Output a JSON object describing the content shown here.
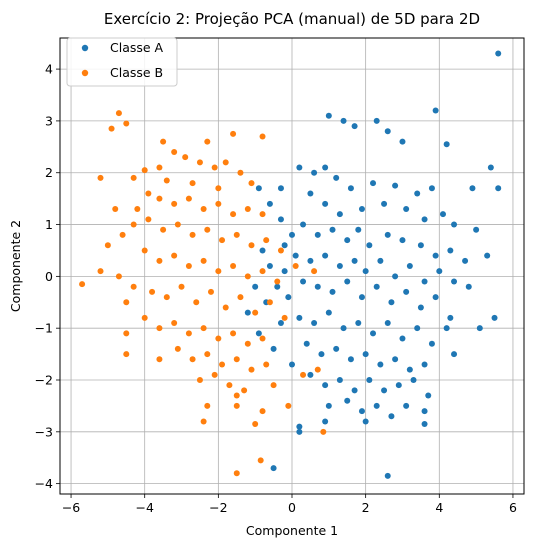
{
  "chart_data": {
    "type": "scatter",
    "title": "Exercício 2: Projeção PCA (manual) de 5D para 2D",
    "xlabel": "Componente 1",
    "ylabel": "Componente 2",
    "xlim": [
      -6.3,
      6.3
    ],
    "ylim": [
      -4.2,
      4.6
    ],
    "xticks": [
      -6,
      -4,
      -2,
      0,
      2,
      4,
      6
    ],
    "yticks": [
      -4,
      -3,
      -2,
      -1,
      0,
      1,
      2,
      3,
      4
    ],
    "xtick_labels": [
      "−6",
      "−4",
      "−2",
      "0",
      "2",
      "4",
      "6"
    ],
    "ytick_labels": [
      "−4",
      "−3",
      "−2",
      "−1",
      "0",
      "1",
      "2",
      "3",
      "4"
    ],
    "grid": true,
    "legend_position": "top-left",
    "series": [
      {
        "name": "Classe A",
        "color": "#1f77b4",
        "points": [
          [
            5.6,
            4.3
          ],
          [
            3.9,
            3.2
          ],
          [
            2.3,
            3.0
          ],
          [
            1.0,
            3.1
          ],
          [
            1.4,
            3.0
          ],
          [
            1.7,
            2.9
          ],
          [
            2.6,
            2.8
          ],
          [
            4.2,
            2.55
          ],
          [
            3.0,
            2.6
          ],
          [
            0.9,
            2.1
          ],
          [
            0.2,
            2.1
          ],
          [
            0.6,
            2.0
          ],
          [
            1.2,
            1.9
          ],
          [
            1.6,
            1.7
          ],
          [
            2.2,
            1.8
          ],
          [
            2.8,
            1.75
          ],
          [
            3.4,
            1.6
          ],
          [
            3.8,
            1.7
          ],
          [
            4.9,
            1.7
          ],
          [
            5.4,
            2.1
          ],
          [
            5.6,
            1.7
          ],
          [
            -0.3,
            1.7
          ],
          [
            -0.9,
            1.7
          ],
          [
            0.5,
            1.6
          ],
          [
            0.9,
            1.4
          ],
          [
            1.3,
            1.2
          ],
          [
            1.9,
            1.3
          ],
          [
            2.5,
            1.4
          ],
          [
            3.1,
            1.3
          ],
          [
            3.6,
            1.1
          ],
          [
            4.1,
            1.2
          ],
          [
            4.4,
            1.0
          ],
          [
            -0.6,
            1.4
          ],
          [
            0.3,
            1.0
          ],
          [
            0.7,
            0.8
          ],
          [
            1.1,
            0.9
          ],
          [
            1.5,
            0.7
          ],
          [
            1.8,
            0.9
          ],
          [
            2.1,
            0.6
          ],
          [
            2.6,
            0.8
          ],
          [
            3.0,
            0.7
          ],
          [
            3.5,
            0.6
          ],
          [
            3.9,
            0.4
          ],
          [
            4.3,
            0.5
          ],
          [
            4.7,
            0.3
          ],
          [
            5.3,
            0.4
          ],
          [
            5.0,
            0.9
          ],
          [
            -0.2,
            0.6
          ],
          [
            0.1,
            0.4
          ],
          [
            0.5,
            0.3
          ],
          [
            0.9,
            0.4
          ],
          [
            1.3,
            0.2
          ],
          [
            1.7,
            0.3
          ],
          [
            2.0,
            0.1
          ],
          [
            2.4,
            0.3
          ],
          [
            2.8,
            0.0
          ],
          [
            3.2,
            0.2
          ],
          [
            3.6,
            -0.1
          ],
          [
            4.0,
            0.1
          ],
          [
            4.4,
            -0.1
          ],
          [
            4.8,
            -0.2
          ],
          [
            0.3,
            -0.1
          ],
          [
            0.7,
            -0.2
          ],
          [
            1.1,
            -0.3
          ],
          [
            1.5,
            -0.1
          ],
          [
            1.9,
            -0.4
          ],
          [
            2.3,
            -0.2
          ],
          [
            2.7,
            -0.5
          ],
          [
            3.1,
            -0.3
          ],
          [
            3.5,
            -0.6
          ],
          [
            3.9,
            -0.4
          ],
          [
            4.3,
            -0.8
          ],
          [
            5.1,
            -1.0
          ],
          [
            5.5,
            -0.8
          ],
          [
            -0.1,
            -0.4
          ],
          [
            0.2,
            -0.8
          ],
          [
            0.6,
            -0.9
          ],
          [
            1.0,
            -0.7
          ],
          [
            1.4,
            -1.0
          ],
          [
            1.8,
            -0.9
          ],
          [
            2.2,
            -1.1
          ],
          [
            2.6,
            -0.9
          ],
          [
            3.0,
            -1.2
          ],
          [
            3.4,
            -1.0
          ],
          [
            3.8,
            -1.3
          ],
          [
            4.2,
            -1.0
          ],
          [
            4.4,
            -1.5
          ],
          [
            0.4,
            -1.3
          ],
          [
            0.8,
            -1.5
          ],
          [
            1.2,
            -1.4
          ],
          [
            1.6,
            -1.6
          ],
          [
            2.0,
            -1.5
          ],
          [
            2.4,
            -1.7
          ],
          [
            2.8,
            -1.6
          ],
          [
            3.2,
            -1.8
          ],
          [
            3.6,
            -1.7
          ],
          [
            0.0,
            -1.7
          ],
          [
            0.5,
            -1.9
          ],
          [
            0.9,
            -2.1
          ],
          [
            1.3,
            -2.0
          ],
          [
            1.7,
            -2.2
          ],
          [
            2.1,
            -2.0
          ],
          [
            2.5,
            -2.2
          ],
          [
            2.9,
            -2.1
          ],
          [
            3.3,
            -2.0
          ],
          [
            3.7,
            -2.3
          ],
          [
            1.0,
            -2.5
          ],
          [
            1.5,
            -2.4
          ],
          [
            1.9,
            -2.6
          ],
          [
            2.3,
            -2.5
          ],
          [
            2.7,
            -2.7
          ],
          [
            3.1,
            -2.5
          ],
          [
            3.6,
            -2.6
          ],
          [
            3.6,
            -2.85
          ],
          [
            0.2,
            -2.9
          ],
          [
            0.9,
            -2.8
          ],
          [
            2.0,
            -2.8
          ],
          [
            0.2,
            -3.0
          ],
          [
            -0.5,
            -3.7
          ],
          [
            2.6,
            -3.85
          ],
          [
            -1.2,
            -0.7
          ],
          [
            -0.9,
            -1.1
          ],
          [
            -0.7,
            -0.5
          ],
          [
            -0.5,
            -1.4
          ],
          [
            -0.3,
            -0.9
          ],
          [
            -1.0,
            -0.2
          ],
          [
            -0.6,
            0.2
          ],
          [
            -0.4,
            -0.2
          ],
          [
            -0.2,
            0.1
          ],
          [
            -0.8,
            0.5
          ],
          [
            -0.3,
            1.1
          ],
          [
            0.0,
            0.8
          ]
        ]
      },
      {
        "name": "Classe B",
        "color": "#ff7f0e",
        "points": [
          [
            -4.7,
            3.15
          ],
          [
            -4.5,
            2.95
          ],
          [
            -4.9,
            2.85
          ],
          [
            -3.5,
            2.6
          ],
          [
            -2.3,
            2.6
          ],
          [
            -1.6,
            2.75
          ],
          [
            -0.8,
            2.7
          ],
          [
            -3.2,
            2.4
          ],
          [
            -2.9,
            2.3
          ],
          [
            -2.5,
            2.2
          ],
          [
            -2.1,
            2.1
          ],
          [
            -1.8,
            2.2
          ],
          [
            -1.4,
            2.0
          ],
          [
            -3.6,
            2.1
          ],
          [
            -4.0,
            2.05
          ],
          [
            -4.3,
            1.9
          ],
          [
            -5.2,
            1.9
          ],
          [
            -3.4,
            1.85
          ],
          [
            -2.7,
            1.8
          ],
          [
            -2.0,
            1.7
          ],
          [
            -1.1,
            1.8
          ],
          [
            -3.9,
            1.6
          ],
          [
            -3.6,
            1.5
          ],
          [
            -3.2,
            1.4
          ],
          [
            -2.8,
            1.5
          ],
          [
            -2.4,
            1.3
          ],
          [
            -2.0,
            1.4
          ],
          [
            -1.6,
            1.2
          ],
          [
            -1.2,
            1.3
          ],
          [
            -0.8,
            1.2
          ],
          [
            -4.2,
            1.3
          ],
          [
            -4.8,
            1.3
          ],
          [
            -4.3,
            1.0
          ],
          [
            -3.9,
            1.1
          ],
          [
            -3.5,
            0.9
          ],
          [
            -3.1,
            1.0
          ],
          [
            -2.7,
            0.8
          ],
          [
            -2.3,
            0.9
          ],
          [
            -1.9,
            0.7
          ],
          [
            -1.5,
            0.8
          ],
          [
            -1.1,
            0.6
          ],
          [
            -0.7,
            0.7
          ],
          [
            -0.3,
            0.5
          ],
          [
            -4.6,
            0.8
          ],
          [
            -5.0,
            0.6
          ],
          [
            -4.0,
            0.5
          ],
          [
            -3.6,
            0.3
          ],
          [
            -3.2,
            0.4
          ],
          [
            -2.8,
            0.2
          ],
          [
            -2.4,
            0.3
          ],
          [
            -2.0,
            0.1
          ],
          [
            -1.6,
            0.2
          ],
          [
            -1.2,
            0.0
          ],
          [
            -0.8,
            0.1
          ],
          [
            -0.4,
            -0.1
          ],
          [
            0.1,
            0.2
          ],
          [
            0.6,
            0.1
          ],
          [
            -5.2,
            0.1
          ],
          [
            -4.7,
            0.0
          ],
          [
            -5.7,
            -0.15
          ],
          [
            -4.3,
            -0.2
          ],
          [
            -3.8,
            -0.3
          ],
          [
            -3.4,
            -0.4
          ],
          [
            -3.0,
            -0.2
          ],
          [
            -2.6,
            -0.5
          ],
          [
            -2.2,
            -0.3
          ],
          [
            -1.8,
            -0.6
          ],
          [
            -1.4,
            -0.4
          ],
          [
            -1.0,
            -0.7
          ],
          [
            -0.6,
            -0.5
          ],
          [
            -0.2,
            -0.8
          ],
          [
            -4.5,
            -0.5
          ],
          [
            -4.0,
            -0.8
          ],
          [
            -3.6,
            -1.0
          ],
          [
            -3.2,
            -0.9
          ],
          [
            -2.8,
            -1.1
          ],
          [
            -2.4,
            -1.0
          ],
          [
            -2.0,
            -1.2
          ],
          [
            -1.6,
            -1.1
          ],
          [
            -1.2,
            -1.3
          ],
          [
            -0.8,
            -1.2
          ],
          [
            -4.5,
            -1.1
          ],
          [
            -4.5,
            -1.5
          ],
          [
            -3.6,
            -1.6
          ],
          [
            -3.1,
            -1.4
          ],
          [
            -2.7,
            -1.6
          ],
          [
            -2.3,
            -1.5
          ],
          [
            -1.9,
            -1.7
          ],
          [
            -1.5,
            -1.6
          ],
          [
            -1.1,
            -1.8
          ],
          [
            -0.7,
            -1.7
          ],
          [
            -2.5,
            -2.0
          ],
          [
            -2.1,
            -1.9
          ],
          [
            -1.7,
            -2.1
          ],
          [
            -1.3,
            -2.2
          ],
          [
            -0.5,
            -2.1
          ],
          [
            0.3,
            -1.9
          ],
          [
            0.7,
            -1.8
          ],
          [
            -2.3,
            -2.5
          ],
          [
            -1.5,
            -2.3
          ],
          [
            -0.8,
            -2.6
          ],
          [
            -2.4,
            -2.8
          ],
          [
            -1.5,
            -2.5
          ],
          [
            -1.0,
            -2.85
          ],
          [
            0.85,
            -3.0
          ],
          [
            -1.5,
            -3.8
          ],
          [
            -0.85,
            -3.55
          ],
          [
            -0.1,
            -2.5
          ]
        ]
      }
    ]
  }
}
